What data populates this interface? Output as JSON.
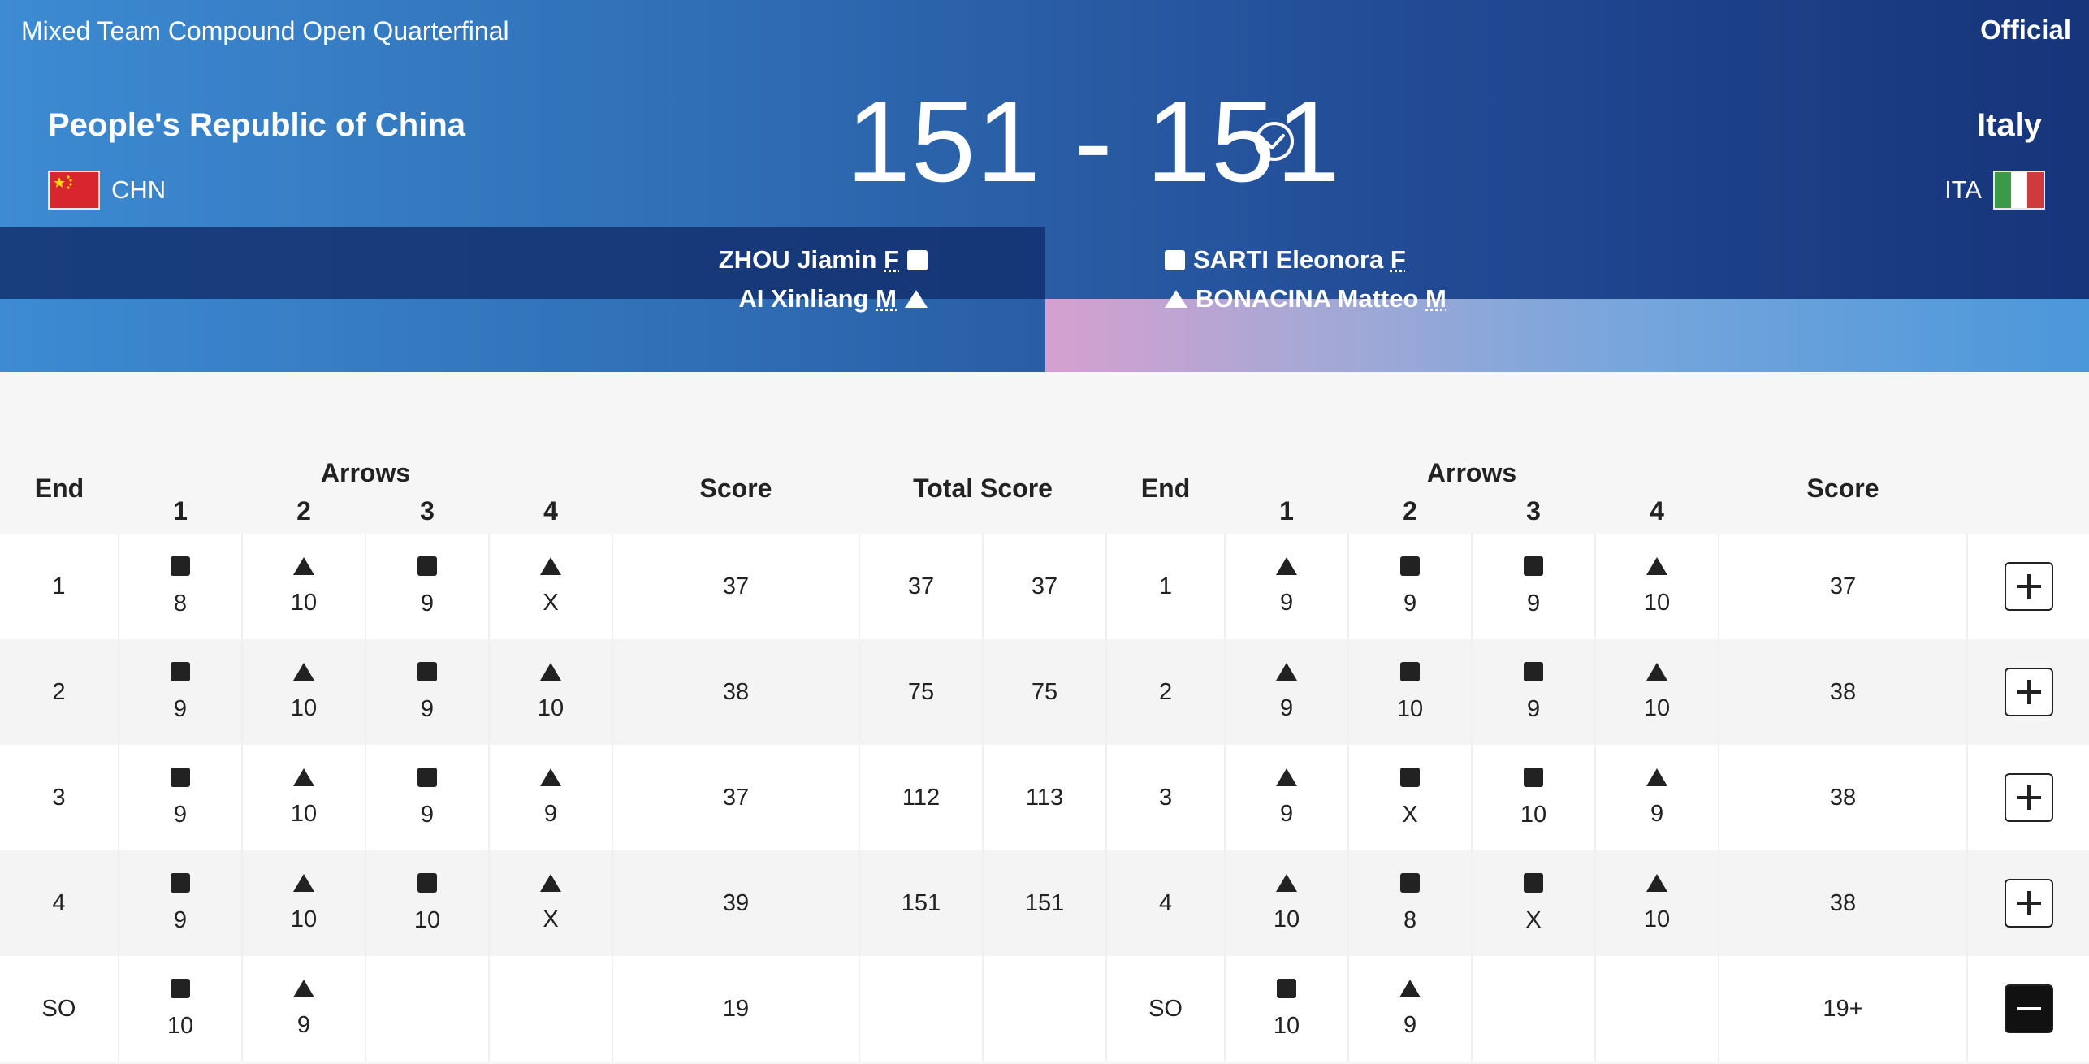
{
  "header": {
    "event": "Mixed Team Compound Open Quarterfinal",
    "status": "Official",
    "score": "151 - 151",
    "left_team": {
      "name": "People's Republic of China",
      "code": "CHN",
      "players": [
        {
          "name": "ZHOU Jiamin",
          "gender": "F",
          "marker": "square"
        },
        {
          "name": "AI Xinliang",
          "gender": "M",
          "marker": "triangle"
        }
      ]
    },
    "right_team": {
      "name": "Italy",
      "code": "ITA",
      "players": [
        {
          "name": "SARTI Eleonora",
          "gender": "F",
          "marker": "square"
        },
        {
          "name": "BONACINA Matteo",
          "gender": "M",
          "marker": "triangle"
        }
      ]
    }
  },
  "table": {
    "headers": {
      "end": "End",
      "arrows": "Arrows",
      "arrow_numbers": [
        "1",
        "2",
        "3",
        "4"
      ],
      "score": "Score",
      "total_score": "Total Score"
    },
    "rows": [
      {
        "end": "1",
        "left": [
          [
            "square",
            "8"
          ],
          [
            "triangle",
            "10"
          ],
          [
            "square",
            "9"
          ],
          [
            "triangle",
            "X"
          ]
        ],
        "left_score": "37",
        "left_total": "37",
        "right_total": "37",
        "right": [
          [
            "triangle",
            "9"
          ],
          [
            "square",
            "9"
          ],
          [
            "square",
            "9"
          ],
          [
            "triangle",
            "10"
          ]
        ],
        "right_score": "37",
        "expanded": false
      },
      {
        "end": "2",
        "left": [
          [
            "square",
            "9"
          ],
          [
            "triangle",
            "10"
          ],
          [
            "square",
            "9"
          ],
          [
            "triangle",
            "10"
          ]
        ],
        "left_score": "38",
        "left_total": "75",
        "right_total": "75",
        "right": [
          [
            "triangle",
            "9"
          ],
          [
            "square",
            "10"
          ],
          [
            "square",
            "9"
          ],
          [
            "triangle",
            "10"
          ]
        ],
        "right_score": "38",
        "expanded": false
      },
      {
        "end": "3",
        "left": [
          [
            "square",
            "9"
          ],
          [
            "triangle",
            "10"
          ],
          [
            "square",
            "9"
          ],
          [
            "triangle",
            "9"
          ]
        ],
        "left_score": "37",
        "left_total": "112",
        "right_total": "113",
        "right": [
          [
            "triangle",
            "9"
          ],
          [
            "square",
            "X"
          ],
          [
            "square",
            "10"
          ],
          [
            "triangle",
            "9"
          ]
        ],
        "right_score": "38",
        "expanded": false
      },
      {
        "end": "4",
        "left": [
          [
            "square",
            "9"
          ],
          [
            "triangle",
            "10"
          ],
          [
            "square",
            "10"
          ],
          [
            "triangle",
            "X"
          ]
        ],
        "left_score": "39",
        "left_total": "151",
        "right_total": "151",
        "right": [
          [
            "triangle",
            "10"
          ],
          [
            "square",
            "8"
          ],
          [
            "square",
            "X"
          ],
          [
            "triangle",
            "10"
          ]
        ],
        "right_score": "38",
        "expanded": false
      },
      {
        "end": "SO",
        "left": [
          [
            "square",
            "10"
          ],
          [
            "triangle",
            "9"
          ]
        ],
        "left_score": "19",
        "left_total": "",
        "right_total": "",
        "right": [
          [
            "square",
            "10"
          ],
          [
            "triangle",
            "9"
          ]
        ],
        "right_score": "19+",
        "expanded": true
      }
    ]
  },
  "icons": {
    "check": "check-circle-icon",
    "square": "square-marker-icon",
    "triangle": "triangle-marker-icon",
    "expand": "plus-icon",
    "collapse": "minus-icon"
  },
  "colors": {
    "header_start": "#3d8bd2",
    "header_end": "#16347a",
    "china_red": "#d8262f",
    "italy_green": "#3a9a48",
    "italy_red": "#cf3a3d"
  }
}
